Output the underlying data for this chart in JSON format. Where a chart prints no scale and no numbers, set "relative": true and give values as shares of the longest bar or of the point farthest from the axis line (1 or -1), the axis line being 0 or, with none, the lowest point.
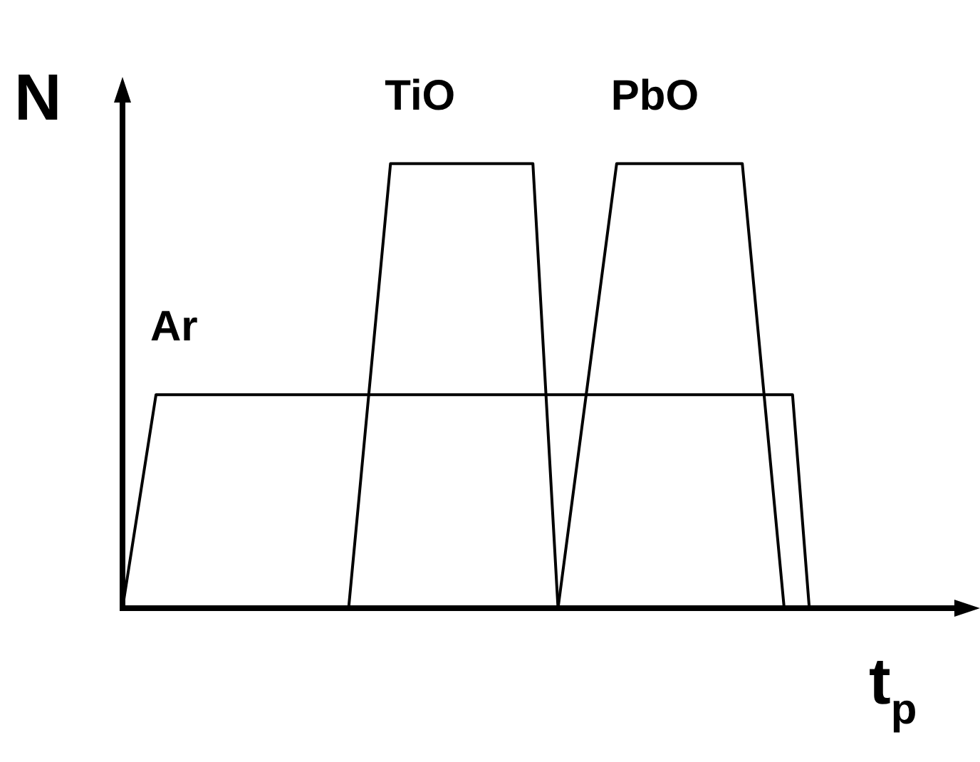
{
  "chart_data": {
    "type": "line",
    "relative": true,
    "xlabel": "t$_{p}$",
    "ylabel": "N",
    "tick_labels": false,
    "grid": false,
    "legend": false,
    "marker": "none",
    "line_style": "solid",
    "categories": [
      null,
      null,
      null,
      null,
      null,
      null,
      null,
      null,
      null,
      null,
      null,
      null,
      null,
      null,
      null,
      null,
      null,
      null,
      null,
      null,
      null,
      null,
      null,
      null,
      null,
      null,
      null,
      null,
      null,
      null,
      null,
      null,
      null,
      null,
      null,
      null,
      null,
      null,
      null,
      null,
      null,
      null,
      null,
      null,
      null,
      null,
      null,
      null,
      null,
      null,
      null,
      null,
      null,
      null,
      null,
      null,
      null,
      null,
      null,
      null,
      null,
      null,
      null,
      null,
      null,
      null,
      null,
      null,
      null,
      null,
      null,
      null,
      null,
      null,
      null,
      null,
      null,
      null,
      null,
      null,
      null,
      null,
      null,
      null,
      null,
      null,
      null,
      null,
      null,
      null,
      null,
      null,
      null,
      null,
      null,
      null,
      null,
      null,
      null,
      null,
      null
    ],
    "series": [
      {
        "name": "Ar",
        "color": "#000000",
        "values": [
          0,
          null,
          null,
          null,
          0.48,
          null,
          null,
          null,
          null,
          null,
          null,
          null,
          null,
          null,
          null,
          null,
          null,
          null,
          null,
          null,
          null,
          null,
          null,
          null,
          null,
          null,
          null,
          null,
          null,
          null,
          null,
          null,
          null,
          null,
          null,
          null,
          null,
          null,
          null,
          null,
          null,
          null,
          null,
          null,
          null,
          null,
          null,
          null,
          null,
          null,
          null,
          null,
          null,
          null,
          null,
          null,
          null,
          null,
          null,
          null,
          null,
          null,
          null,
          null,
          null,
          null,
          null,
          null,
          null,
          null,
          null,
          null,
          null,
          null,
          null,
          null,
          null,
          null,
          null,
          null,
          0.48,
          null,
          0,
          null,
          null,
          null,
          null,
          null,
          null,
          null,
          null,
          null,
          null,
          null,
          null,
          null,
          null,
          null,
          null,
          null,
          null
        ]
      },
      {
        "name": "TiO",
        "color": "#000000",
        "values": [
          null,
          null,
          null,
          null,
          null,
          null,
          null,
          null,
          null,
          null,
          null,
          null,
          null,
          null,
          null,
          null,
          null,
          null,
          null,
          null,
          null,
          null,
          null,
          null,
          null,
          null,
          null,
          0,
          null,
          null,
          null,
          null,
          1,
          null,
          null,
          null,
          null,
          null,
          null,
          null,
          null,
          null,
          null,
          null,
          null,
          null,
          null,
          null,
          null,
          1,
          null,
          null,
          0,
          null,
          null,
          null,
          null,
          null,
          null,
          null,
          null,
          null,
          null,
          null,
          null,
          null,
          null,
          null,
          null,
          null,
          null,
          null,
          null,
          null,
          null,
          null,
          null,
          null,
          null,
          null,
          null,
          null,
          null,
          null,
          null,
          null,
          null,
          null,
          null,
          null,
          null,
          null,
          null,
          null,
          null,
          null,
          null,
          null,
          null,
          null,
          null
        ]
      },
      {
        "name": "PbO",
        "color": "#000000",
        "values": [
          null,
          null,
          null,
          null,
          null,
          null,
          null,
          null,
          null,
          null,
          null,
          null,
          null,
          null,
          null,
          null,
          null,
          null,
          null,
          null,
          null,
          null,
          null,
          null,
          null,
          null,
          null,
          null,
          null,
          null,
          null,
          null,
          null,
          null,
          null,
          null,
          null,
          null,
          null,
          null,
          null,
          null,
          null,
          null,
          null,
          null,
          null,
          null,
          null,
          null,
          null,
          null,
          0,
          null,
          null,
          null,
          null,
          null,
          null,
          1,
          null,
          null,
          null,
          null,
          null,
          null,
          null,
          null,
          null,
          null,
          null,
          null,
          null,
          null,
          1,
          null,
          null,
          null,
          null,
          0,
          null,
          null,
          null,
          null,
          null,
          null,
          null,
          null,
          null,
          null,
          null,
          null,
          null,
          null,
          null,
          null,
          null,
          null,
          null,
          null,
          null
        ]
      }
    ]
  }
}
